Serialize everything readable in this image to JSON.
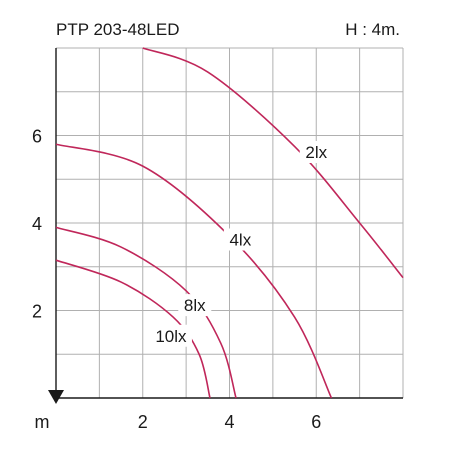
{
  "header": {
    "title": "PTP 203-48LED",
    "height_note": "H : 4m."
  },
  "colors": {
    "curve": "#c0275a",
    "grid": "#b0b0b0",
    "axis": "#1a1a1a"
  },
  "chart_data": {
    "type": "line",
    "title": "PTP 203-48LED",
    "subtitle": "H : 4m.",
    "xlabel": "m",
    "ylabel": "",
    "xlim": [
      0,
      8
    ],
    "ylim": [
      0,
      8
    ],
    "grid": true,
    "xticks": [
      2,
      4,
      6
    ],
    "yticks": [
      2,
      4,
      6
    ],
    "series": [
      {
        "name": "2lx",
        "points": [
          [
            2.0,
            8.0
          ],
          [
            3.5,
            7.45
          ],
          [
            5.5,
            5.75
          ],
          [
            7.0,
            4.0
          ],
          [
            8.0,
            2.75
          ]
        ]
      },
      {
        "name": "4lx",
        "points": [
          [
            0.0,
            5.8
          ],
          [
            2.0,
            5.3
          ],
          [
            4.0,
            3.7
          ],
          [
            5.5,
            1.85
          ],
          [
            6.35,
            0.0
          ]
        ]
      },
      {
        "name": "8lx",
        "points": [
          [
            0.0,
            3.9
          ],
          [
            1.5,
            3.45
          ],
          [
            3.0,
            2.45
          ],
          [
            3.8,
            1.25
          ],
          [
            4.15,
            0.0
          ]
        ]
      },
      {
        "name": "10lx",
        "points": [
          [
            0.0,
            3.15
          ],
          [
            1.5,
            2.65
          ],
          [
            2.7,
            1.85
          ],
          [
            3.3,
            1.0
          ],
          [
            3.55,
            0.0
          ]
        ]
      }
    ],
    "labels": [
      {
        "text": "2lx",
        "x": 6.0,
        "y": 5.6
      },
      {
        "text": "4lx",
        "x": 4.25,
        "y": 3.6
      },
      {
        "text": "8lx",
        "x": 3.2,
        "y": 2.1
      },
      {
        "text": "10lx",
        "x": 2.65,
        "y": 1.4
      }
    ]
  }
}
